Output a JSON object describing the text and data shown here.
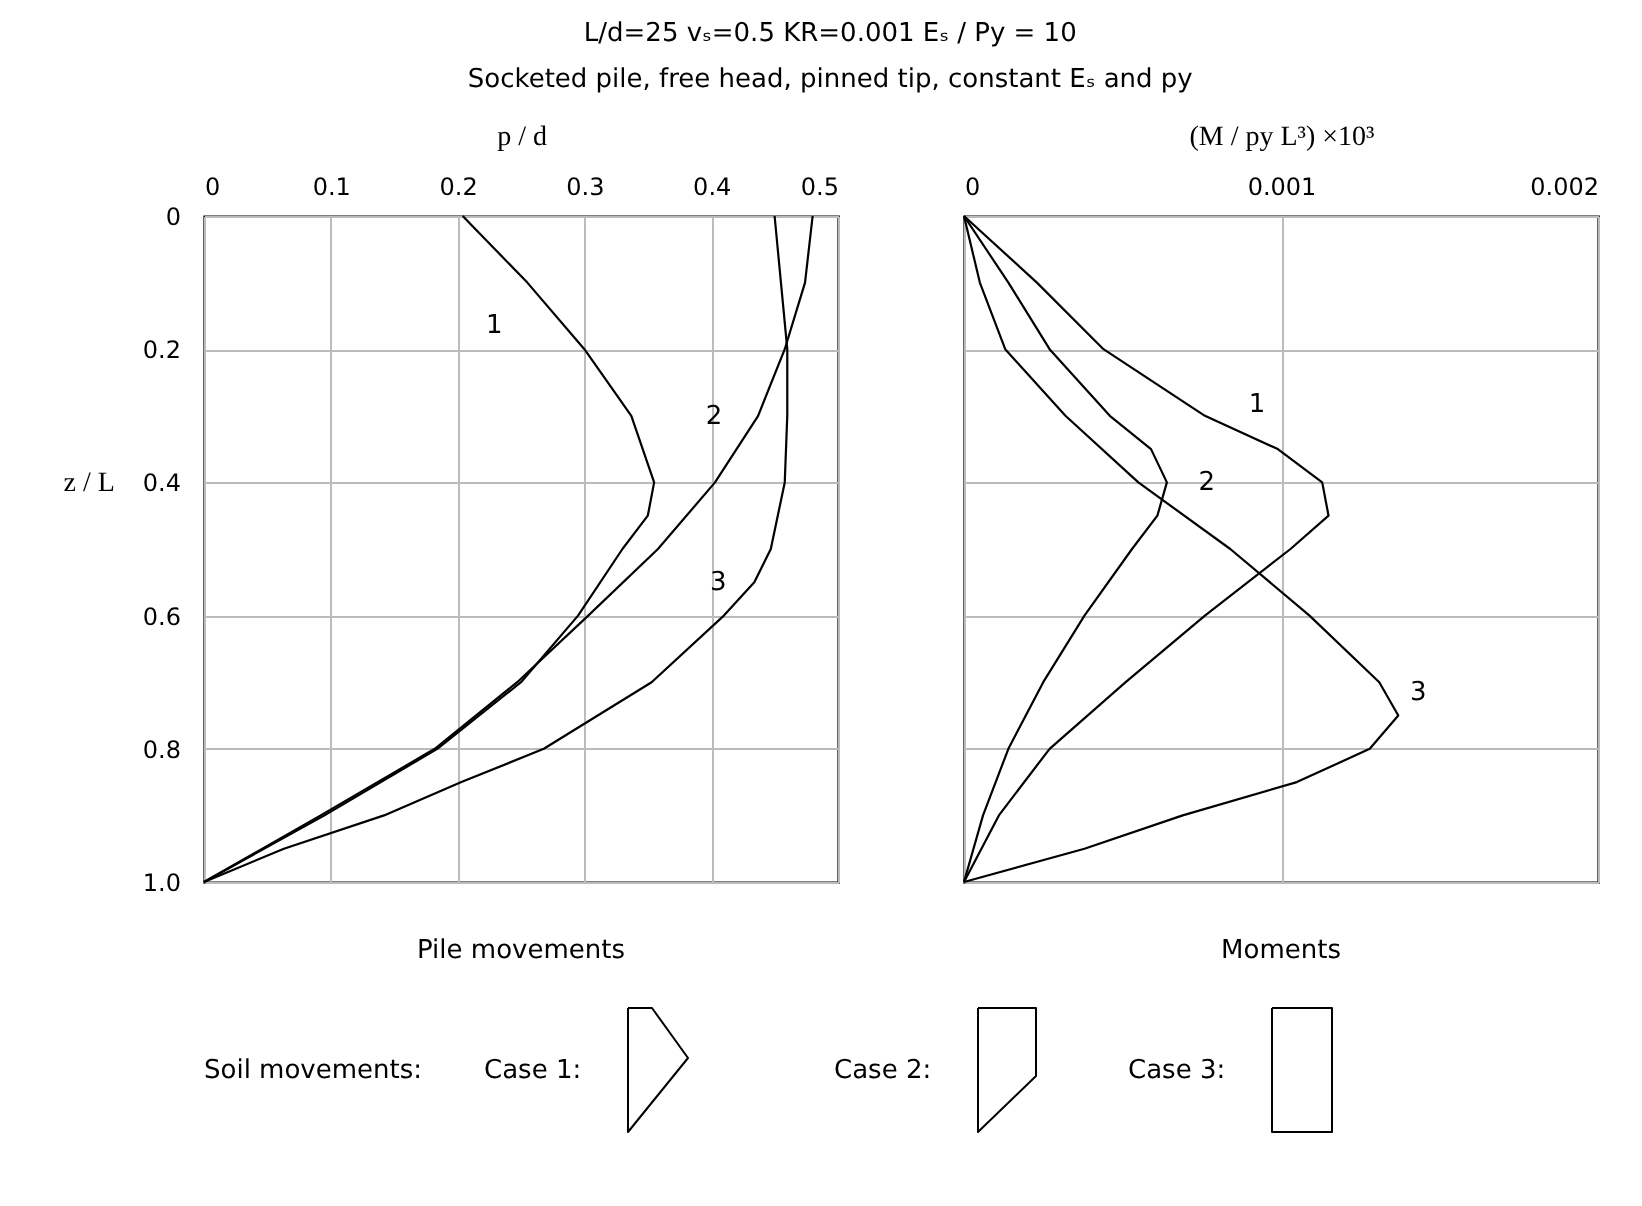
{
  "chart_data": [
    {
      "type": "line",
      "orientation": "horizontal",
      "title": "L/d=25   vₛ=0.5   KR=0.001   Eₛ / Py = 10",
      "subtitle": "Socketed pile, free head, pinned tip, constant Eₛ and py",
      "xlabel": "p / d",
      "ylabel": "z / L",
      "xlim": [
        0,
        0.5
      ],
      "xticks": [
        0,
        0.1,
        0.2,
        0.3,
        0.4,
        0.5
      ],
      "ylim": [
        1,
        0
      ],
      "yticks": [
        0,
        0.2,
        0.4,
        0.6,
        0.8,
        {
          "value": 1,
          "label": "1.0"
        }
      ],
      "grid": true,
      "series": [
        {
          "name": "1",
          "color": "#000000",
          "x": [
            0,
            0.1,
            0.2,
            0.3,
            0.4,
            0.45,
            0.5,
            0.6,
            0.7,
            0.8,
            0.9,
            1
          ],
          "values": [
            0.204,
            0.255,
            0.3,
            0.337,
            0.355,
            0.35,
            0.33,
            0.295,
            0.25,
            0.184,
            0.095,
            0
          ]
        },
        {
          "name": "2",
          "color": "#000000",
          "x": [
            0,
            0.1,
            0.2,
            0.3,
            0.4,
            0.5,
            0.6,
            0.7,
            0.8,
            0.9,
            1
          ],
          "values": [
            0.48,
            0.474,
            0.458,
            0.437,
            0.403,
            0.358,
            0.303,
            0.247,
            0.182,
            0.092,
            0
          ]
        },
        {
          "name": "3",
          "color": "#000000",
          "x": [
            0,
            0.1,
            0.2,
            0.3,
            0.4,
            0.5,
            0.55,
            0.6,
            0.7,
            0.8,
            0.85,
            0.9,
            0.95,
            1
          ],
          "values": [
            0.45,
            0.455,
            0.46,
            0.46,
            0.458,
            0.447,
            0.434,
            0.41,
            0.353,
            0.268,
            0.203,
            0.142,
            0.063,
            0
          ]
        }
      ],
      "annotations": [
        "Pile movements"
      ]
    },
    {
      "type": "line",
      "orientation": "horizontal",
      "xlabel": "(M / py L³) ×10³",
      "xlim": [
        0,
        0.002
      ],
      "xticks": [
        0,
        0.001,
        0.002
      ],
      "ylim": [
        1,
        0
      ],
      "yticks": [
        0,
        0.2,
        0.4,
        0.6,
        0.8,
        1
      ],
      "grid": true,
      "tick_labels": "x",
      "series": [
        {
          "name": "1",
          "color": "#000000",
          "x": [
            0,
            0.1,
            0.2,
            0.3,
            0.35,
            0.4,
            0.45,
            0.5,
            0.6,
            0.7,
            0.8,
            0.9,
            1
          ],
          "values": [
            0,
            0.00023,
            0.00044,
            0.00076,
            0.00099,
            0.00113,
            0.00115,
            0.00103,
            0.00076,
            0.00051,
            0.00027,
            0.00011,
            0
          ]
        },
        {
          "name": "2",
          "color": "#000000",
          "x": [
            0,
            0.1,
            0.2,
            0.3,
            0.35,
            0.4,
            0.45,
            0.5,
            0.6,
            0.7,
            0.8,
            0.9,
            1
          ],
          "values": [
            0,
            0.00014,
            0.00027,
            0.00046,
            0.00059,
            0.00064,
            0.00061,
            0.00053,
            0.00038,
            0.00025,
            0.00014,
            6e-05,
            0
          ]
        },
        {
          "name": "3",
          "color": "#000000",
          "x": [
            0,
            0.1,
            0.2,
            0.3,
            0.4,
            0.5,
            0.6,
            0.7,
            0.75,
            0.8,
            0.85,
            0.9,
            0.95,
            1
          ],
          "values": [
            0,
            5e-05,
            0.00013,
            0.00032,
            0.00055,
            0.00084,
            0.00109,
            0.00131,
            0.00137,
            0.00128,
            0.00105,
            0.00069,
            0.00038,
            0
          ]
        }
      ],
      "annotations": [
        "Moments"
      ]
    },
    {
      "type": "other",
      "annotations": [
        "Soil movements:",
        "Case 1:",
        "Case 2:",
        "Case 3:"
      ]
    }
  ]
}
